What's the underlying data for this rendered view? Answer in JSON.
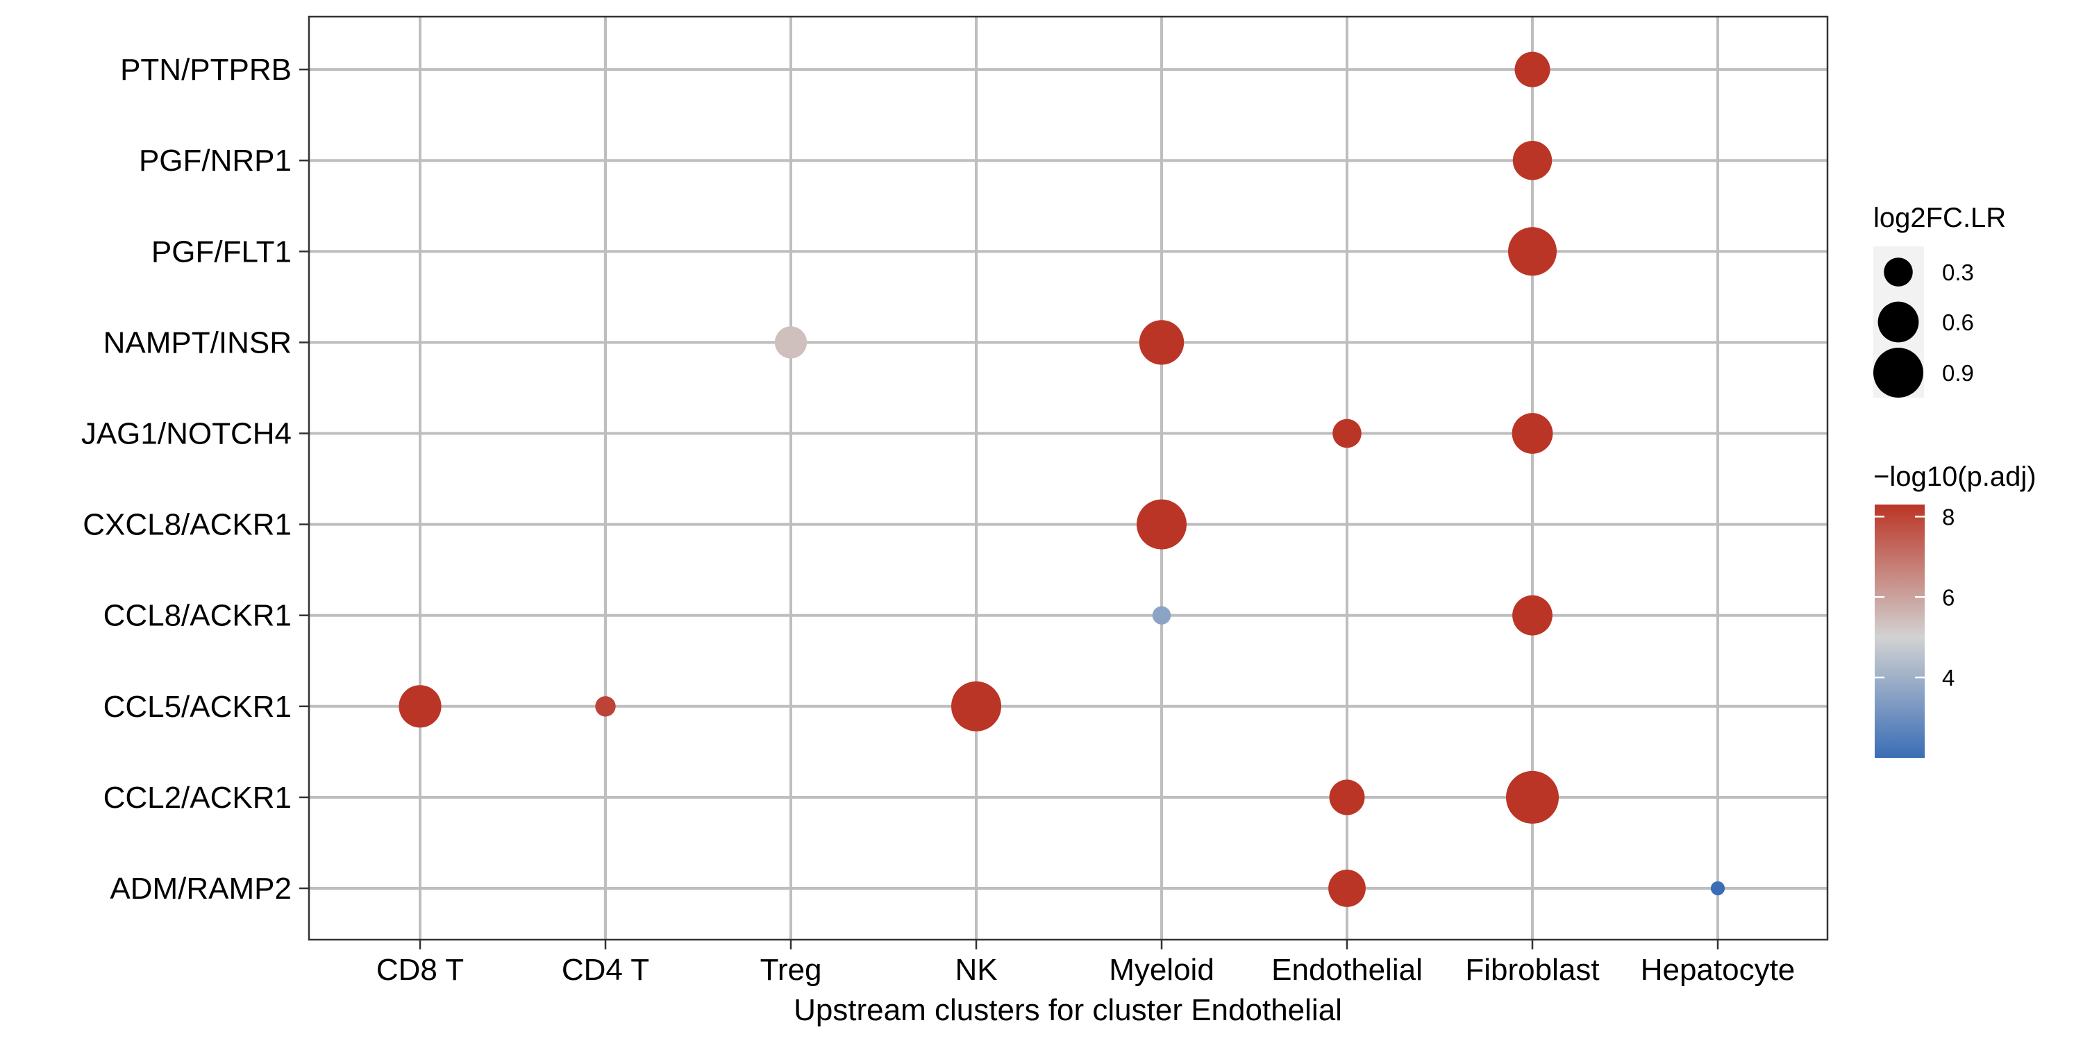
{
  "chart_data": {
    "type": "scatter",
    "xlabel": "Upstream clusters for cluster Endothelial",
    "ylabel": "",
    "x_categories": [
      "CD8 T",
      "CD4 T",
      "Treg",
      "NK",
      "Myeloid",
      "Endothelial",
      "Fibroblast",
      "Hepatocyte"
    ],
    "y_categories": [
      "ADM/RAMP2",
      "CCL2/ACKR1",
      "CCL5/ACKR1",
      "CCL8/ACKR1",
      "CXCL8/ACKR1",
      "JAG1/NOTCH4",
      "NAMPT/INSR",
      "PGF/FLT1",
      "PGF/NRP1",
      "PTN/PTPRB"
    ],
    "grid": true,
    "size_legend": {
      "title": "log2FC.LR",
      "breaks": [
        0.3,
        0.6,
        0.9
      ],
      "labels": [
        "0.3",
        "0.6",
        "0.9"
      ]
    },
    "color_legend": {
      "title": "−log10(p.adj)",
      "colors": [
        "#3a6db5",
        "#d2d2d2",
        "#bb3526"
      ],
      "range": [
        2,
        8.3
      ],
      "mid": 5,
      "breaks": [
        4,
        6,
        8
      ],
      "labels": [
        "4",
        "6",
        "8"
      ]
    },
    "points": [
      {
        "x": "Fibroblast",
        "y": "PTN/PTPRB",
        "log2fc": 0.45,
        "neglog10padj": 8.3
      },
      {
        "x": "Fibroblast",
        "y": "PGF/NRP1",
        "log2fc": 0.55,
        "neglog10padj": 8.3
      },
      {
        "x": "Fibroblast",
        "y": "PGF/FLT1",
        "log2fc": 0.85,
        "neglog10padj": 8.3
      },
      {
        "x": "Treg",
        "y": "NAMPT/INSR",
        "log2fc": 0.37,
        "neglog10padj": 5.4
      },
      {
        "x": "Myeloid",
        "y": "NAMPT/INSR",
        "log2fc": 0.72,
        "neglog10padj": 8.3
      },
      {
        "x": "Endothelial",
        "y": "JAG1/NOTCH4",
        "log2fc": 0.3,
        "neglog10padj": 8.3
      },
      {
        "x": "Fibroblast",
        "y": "JAG1/NOTCH4",
        "log2fc": 0.6,
        "neglog10padj": 8.3
      },
      {
        "x": "Myeloid",
        "y": "CXCL8/ACKR1",
        "log2fc": 0.9,
        "neglog10padj": 8.3
      },
      {
        "x": "Myeloid",
        "y": "CCL8/ACKR1",
        "log2fc": 0.12,
        "neglog10padj": 3.6
      },
      {
        "x": "Fibroblast",
        "y": "CCL8/ACKR1",
        "log2fc": 0.58,
        "neglog10padj": 8.3
      },
      {
        "x": "CD8 T",
        "y": "CCL5/ACKR1",
        "log2fc": 0.65,
        "neglog10padj": 8.3
      },
      {
        "x": "CD4 T",
        "y": "CCL5/ACKR1",
        "log2fc": 0.15,
        "neglog10padj": 8.0
      },
      {
        "x": "NK",
        "y": "CCL5/ACKR1",
        "log2fc": 0.9,
        "neglog10padj": 8.3
      },
      {
        "x": "Endothelial",
        "y": "CCL2/ACKR1",
        "log2fc": 0.45,
        "neglog10padj": 8.3
      },
      {
        "x": "Fibroblast",
        "y": "CCL2/ACKR1",
        "log2fc": 1.0,
        "neglog10padj": 8.3
      },
      {
        "x": "Endothelial",
        "y": "ADM/RAMP2",
        "log2fc": 0.5,
        "neglog10padj": 8.3
      },
      {
        "x": "Hepatocyte",
        "y": "ADM/RAMP2",
        "log2fc": 0.07,
        "neglog10padj": 2.0
      }
    ]
  }
}
